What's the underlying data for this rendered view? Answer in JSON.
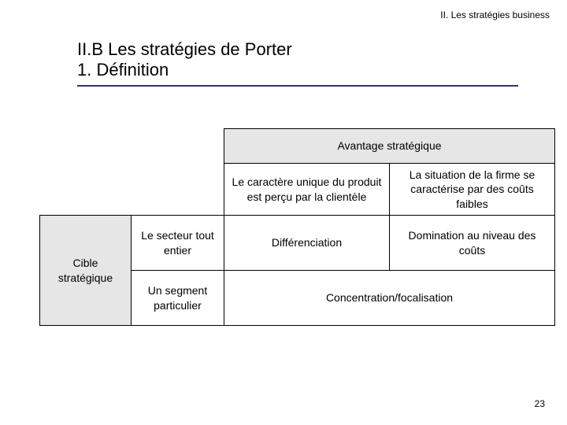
{
  "breadcrumb": "II. Les stratégies business",
  "heading": {
    "line1": "II.B Les stratégies de Porter",
    "line2": "1. Définition"
  },
  "table": {
    "top_header": "Avantage stratégique",
    "sub_headers": {
      "left": "Le caractère unique du produit est perçu par la clientèle",
      "right": "La situation de la firme se caractérise par des coûts faibles"
    },
    "row_axis_label": "Cible stratégique",
    "row_labels": {
      "whole": "Le secteur tout entier",
      "segment": "Un segment particulier"
    },
    "cells": {
      "differentiation": "Différenciation",
      "cost_leadership": "Domination au niveau des coûts",
      "focus": "Concentration/focalisation"
    }
  },
  "page_number": "23"
}
